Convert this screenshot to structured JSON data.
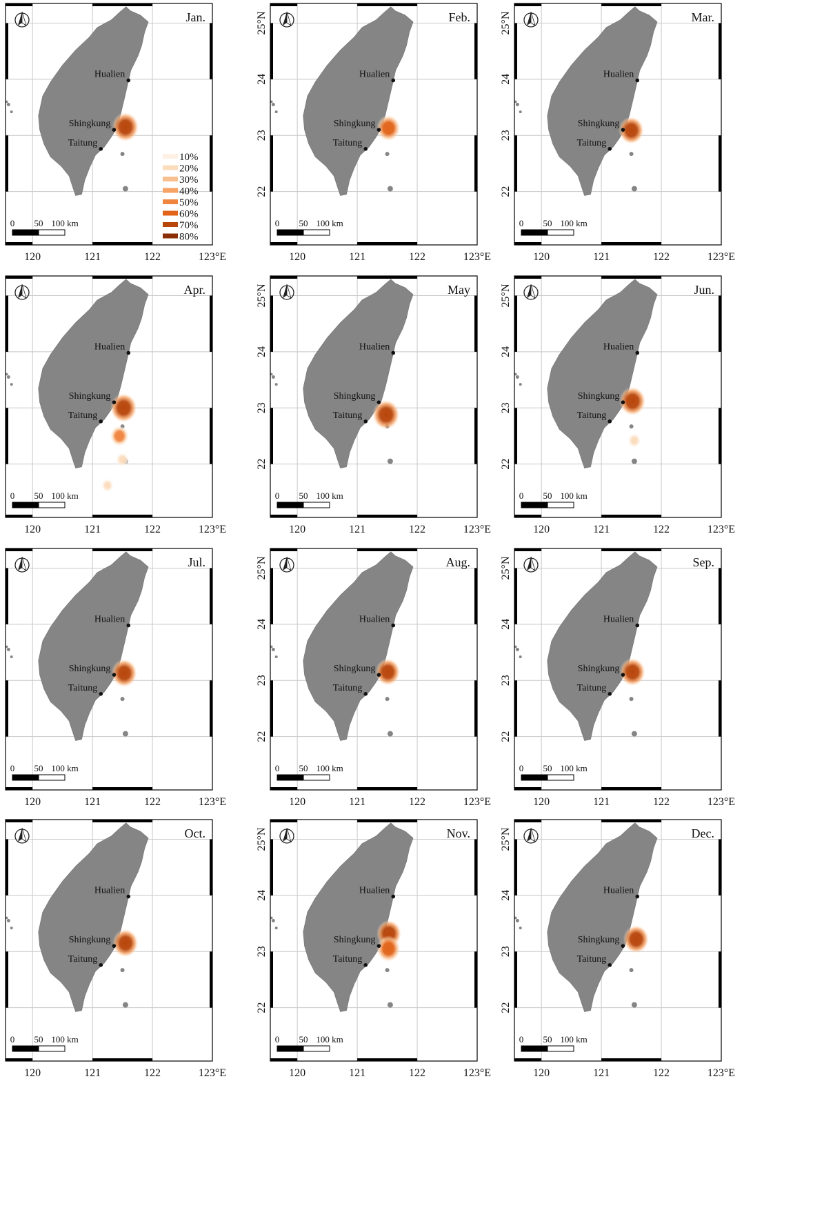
{
  "figure": {
    "colors": {
      "land": "#858585",
      "grid": "#c8c8c8",
      "frame": "#000000",
      "heat": [
        "#fdf1e4",
        "#fbdcbd",
        "#f9c08f",
        "#f6a365",
        "#f08540",
        "#e16419",
        "#b8460b",
        "#8a2f05"
      ]
    },
    "tick_labels": {
      "lon": [
        "120",
        "121",
        "122",
        "123°E"
      ],
      "lat": [
        "25°N",
        "24",
        "23",
        "22"
      ]
    },
    "scale_bar": {
      "labels": [
        "0",
        "50",
        "100 km"
      ]
    },
    "north_arrow_icon": "compass-north-arrow-icon",
    "places": [
      {
        "key": "hualien",
        "name": "Hualien",
        "lon": 121.6,
        "lat": 23.98
      },
      {
        "key": "shingkung",
        "name": "Shingkung",
        "lon": 121.36,
        "lat": 23.1
      },
      {
        "key": "taitung",
        "name": "Taitung",
        "lon": 121.14,
        "lat": 22.76
      }
    ],
    "legend": {
      "panel": "Jan.",
      "items": [
        "10%",
        "20%",
        "30%",
        "40%",
        "50%",
        "60%",
        "70%",
        "80%"
      ]
    }
  },
  "panels": [
    {
      "month": "Jan.",
      "hotspots": [
        {
          "lon": 121.55,
          "lat": 23.15,
          "level": 0.9
        }
      ]
    },
    {
      "month": "Feb.",
      "hotspots": [
        {
          "lon": 121.52,
          "lat": 23.13,
          "level": 0.75
        }
      ]
    },
    {
      "month": "Mar.",
      "hotspots": [
        {
          "lon": 121.5,
          "lat": 23.09,
          "level": 0.82
        }
      ]
    },
    {
      "month": "Apr.",
      "hotspots": [
        {
          "lon": 121.52,
          "lat": 23.0,
          "level": 0.9
        },
        {
          "lon": 121.45,
          "lat": 22.5,
          "level": 0.5
        },
        {
          "lon": 121.5,
          "lat": 22.08,
          "level": 0.2
        },
        {
          "lon": 121.25,
          "lat": 21.62,
          "level": 0.15
        }
      ]
    },
    {
      "month": "May",
      "hotspots": [
        {
          "lon": 121.48,
          "lat": 22.88,
          "level": 0.92
        }
      ]
    },
    {
      "month": "Jun.",
      "hotspots": [
        {
          "lon": 121.52,
          "lat": 23.12,
          "level": 0.88
        },
        {
          "lon": 121.55,
          "lat": 22.42,
          "level": 0.2
        }
      ]
    },
    {
      "month": "Jul.",
      "hotspots": [
        {
          "lon": 121.53,
          "lat": 23.13,
          "level": 0.85
        }
      ]
    },
    {
      "month": "Aug.",
      "hotspots": [
        {
          "lon": 121.51,
          "lat": 23.15,
          "level": 0.8
        }
      ]
    },
    {
      "month": "Sep.",
      "hotspots": [
        {
          "lon": 121.52,
          "lat": 23.15,
          "level": 0.85
        }
      ]
    },
    {
      "month": "Oct.",
      "hotspots": [
        {
          "lon": 121.55,
          "lat": 23.15,
          "level": 0.85
        }
      ]
    },
    {
      "month": "Nov.",
      "hotspots": [
        {
          "lon": 121.53,
          "lat": 23.32,
          "level": 0.8
        },
        {
          "lon": 121.52,
          "lat": 23.05,
          "level": 0.75
        }
      ]
    },
    {
      "month": "Dec.",
      "hotspots": [
        {
          "lon": 121.58,
          "lat": 23.22,
          "level": 0.85
        }
      ]
    }
  ]
}
